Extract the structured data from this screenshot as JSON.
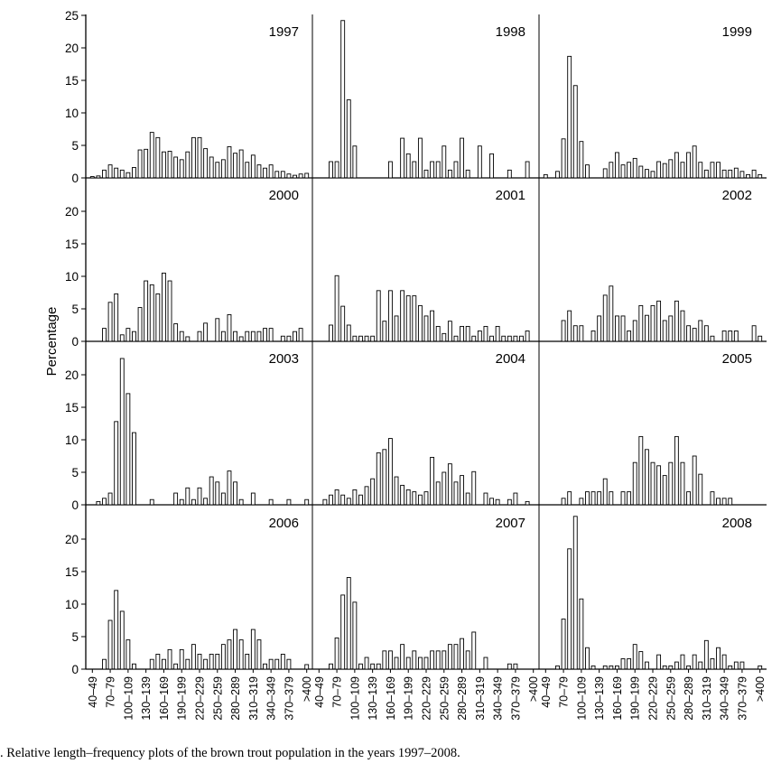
{
  "figure": {
    "ylabel": "Percentage",
    "caption": ".  Relative length–frequency plots of the brown trout population in the years 1997–2008."
  },
  "chart_data": {
    "type": "bar",
    "layout": "small-multiples 4x3",
    "ylabel": "Percentage",
    "ylim": [
      0,
      25
    ],
    "yticks": [
      0,
      5,
      10,
      15,
      20,
      25
    ],
    "grid": false,
    "categories": [
      "40–49",
      "50–59",
      "60–69",
      "70–79",
      "80–89",
      "90–99",
      "100–109",
      "110–119",
      "120–129",
      "130–139",
      "140–149",
      "150–159",
      "160–169",
      "170–179",
      "180–189",
      "190–199",
      "200–209",
      "210–219",
      "220–229",
      "230–239",
      "240–249",
      "250–259",
      "260–269",
      "270–279",
      "280–289",
      "290–299",
      "300–309",
      "310–319",
      "320–329",
      "330–339",
      "340–349",
      "350–359",
      "360–369",
      "370–379",
      "380–389",
      "390–399",
      ">400"
    ],
    "xtick_labels": [
      "40–49",
      "70–79",
      "100–109",
      "130–139",
      "160–169",
      "190–199",
      "220–229",
      "250–259",
      "280–289",
      "310–319",
      "340–349",
      "370–379",
      ">400"
    ],
    "panels": [
      {
        "name": "1997",
        "values": [
          0.2,
          0.3,
          1.2,
          2.0,
          1.5,
          1.2,
          0.8,
          1.6,
          4.3,
          4.4,
          7.0,
          6.2,
          4.0,
          4.1,
          3.2,
          2.8,
          4.0,
          6.2,
          6.2,
          4.5,
          3.2,
          2.4,
          2.8,
          4.8,
          3.8,
          4.3,
          2.4,
          3.5,
          2.0,
          1.5,
          2.0,
          1.0,
          1.0,
          0.6,
          0.4,
          0.6,
          0.7
        ]
      },
      {
        "name": "1998",
        "values": [
          0,
          0,
          2.5,
          2.5,
          24.2,
          12.0,
          4.9,
          0,
          0,
          0,
          0,
          0,
          2.5,
          0,
          6.1,
          3.7,
          2.5,
          6.1,
          1.2,
          2.5,
          2.5,
          4.9,
          1.2,
          2.5,
          6.1,
          1.2,
          0,
          4.9,
          0,
          3.7,
          0,
          0,
          1.2,
          0,
          0,
          2.5,
          0
        ]
      },
      {
        "name": "1999",
        "values": [
          0.5,
          0,
          1.0,
          6.0,
          18.7,
          14.2,
          5.6,
          2.0,
          0,
          0,
          1.4,
          2.4,
          3.9,
          2.0,
          2.4,
          3.0,
          1.8,
          1.3,
          1.0,
          2.5,
          2.2,
          2.8,
          3.9,
          2.4,
          3.9,
          4.9,
          2.4,
          1.2,
          2.4,
          2.4,
          1.2,
          1.2,
          1.5,
          1.0,
          0.5,
          1.2,
          0.5
        ]
      },
      {
        "name": "2000",
        "values": [
          0,
          0,
          2.0,
          6.0,
          7.3,
          1.0,
          2.0,
          1.5,
          5.2,
          9.3,
          8.7,
          7.3,
          10.5,
          9.3,
          2.7,
          1.5,
          0.7,
          0,
          1.5,
          2.8,
          0,
          3.5,
          1.5,
          4.1,
          1.5,
          0.7,
          1.5,
          1.5,
          1.5,
          2.0,
          2.0,
          0,
          0.8,
          0.8,
          1.5,
          2.0,
          0
        ]
      },
      {
        "name": "2001",
        "values": [
          0,
          0,
          2.5,
          10.1,
          5.4,
          2.5,
          0.8,
          0.8,
          0.8,
          0.8,
          7.8,
          3.1,
          7.8,
          3.9,
          7.8,
          7.0,
          7.0,
          5.5,
          3.9,
          4.7,
          2.3,
          1.2,
          3.1,
          0.8,
          2.3,
          2.3,
          0.8,
          1.6,
          2.3,
          0.8,
          2.3,
          0.8,
          0.8,
          0.8,
          0.8,
          1.6,
          0
        ]
      },
      {
        "name": "2002",
        "values": [
          0,
          0,
          0,
          3.2,
          4.7,
          2.4,
          2.4,
          0,
          1.6,
          3.9,
          7.1,
          8.5,
          3.9,
          3.9,
          1.6,
          3.2,
          5.5,
          4.0,
          5.5,
          6.2,
          3.2,
          3.9,
          6.2,
          4.7,
          2.4,
          2.0,
          3.2,
          2.4,
          0.8,
          0,
          1.6,
          1.6,
          1.6,
          0,
          0,
          2.4,
          0.8
        ]
      },
      {
        "name": "2003",
        "values": [
          0,
          0.5,
          1.0,
          1.8,
          12.8,
          22.5,
          17.1,
          11.1,
          0,
          0,
          0.8,
          0,
          0,
          0,
          1.8,
          0.8,
          2.6,
          0.8,
          2.6,
          1.0,
          4.3,
          3.5,
          1.8,
          5.2,
          3.5,
          0.8,
          0,
          1.8,
          0,
          0,
          0.8,
          0,
          0,
          0.8,
          0,
          0,
          0.8
        ]
      },
      {
        "name": "2004",
        "values": [
          0,
          0.8,
          1.5,
          2.3,
          1.5,
          1.0,
          2.3,
          1.5,
          2.8,
          4.0,
          8.0,
          8.5,
          10.2,
          4.3,
          3.0,
          2.3,
          2.0,
          1.5,
          2.0,
          7.3,
          3.5,
          5.0,
          6.3,
          3.5,
          4.5,
          1.8,
          5.1,
          0,
          1.8,
          1.0,
          0.8,
          0,
          0.8,
          1.8,
          0,
          0.5,
          0
        ]
      },
      {
        "name": "2005",
        "values": [
          0,
          0,
          0,
          1.0,
          2.0,
          0,
          1.0,
          2.0,
          2.0,
          2.0,
          4.0,
          2.0,
          0,
          2.0,
          2.0,
          6.5,
          10.5,
          8.5,
          6.5,
          6.0,
          4.5,
          6.5,
          10.5,
          6.5,
          2.0,
          7.5,
          4.7,
          0,
          2.0,
          1.0,
          1.0,
          1.0,
          0,
          0,
          0,
          0,
          0
        ]
      },
      {
        "name": "2006",
        "values": [
          0,
          0,
          1.5,
          7.5,
          12.1,
          8.9,
          4.5,
          0.8,
          0,
          0,
          1.5,
          2.3,
          1.5,
          3.0,
          0.8,
          3.0,
          1.5,
          3.8,
          2.3,
          1.5,
          2.3,
          2.3,
          3.8,
          4.5,
          6.1,
          4.5,
          2.3,
          6.1,
          4.5,
          0.8,
          1.5,
          1.5,
          2.3,
          1.5,
          0,
          0,
          0.7
        ]
      },
      {
        "name": "2007",
        "values": [
          0,
          0,
          0.8,
          4.8,
          11.4,
          14.1,
          10.3,
          0.8,
          1.8,
          0.8,
          0.8,
          2.8,
          2.8,
          1.8,
          3.8,
          1.8,
          2.8,
          1.8,
          1.8,
          2.8,
          2.8,
          2.8,
          3.8,
          3.8,
          4.7,
          2.8,
          5.7,
          0,
          1.8,
          0,
          0,
          0,
          0.8,
          0.8,
          0,
          0,
          0
        ]
      },
      {
        "name": "2008",
        "values": [
          0,
          0,
          0.5,
          7.7,
          18.5,
          23.5,
          10.8,
          3.3,
          0.5,
          0,
          0.5,
          0.5,
          0.5,
          1.6,
          1.6,
          3.8,
          2.7,
          1.1,
          0,
          2.2,
          0.5,
          0.5,
          1.1,
          2.2,
          0.5,
          2.2,
          1.1,
          4.4,
          1.6,
          3.3,
          2.2,
          0.5,
          1.1,
          1.1,
          0,
          0,
          0.5
        ]
      }
    ]
  }
}
